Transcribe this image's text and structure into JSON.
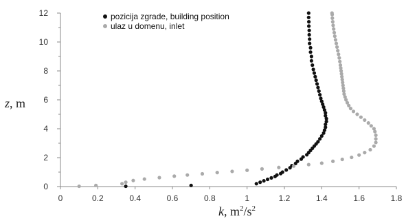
{
  "chart_data": {
    "type": "scatter",
    "x_axis": {
      "label_var": "k",
      "label_rest": ", m",
      "label_sup1": "2",
      "label_mid": "/s",
      "label_sup2": "2",
      "range": [
        0,
        1.8
      ],
      "ticks": [
        "0",
        "0.2",
        "0.4",
        "0.6",
        "0.8",
        "1",
        "1.2",
        "1.4",
        "1.6",
        "1.8"
      ],
      "tick_values": [
        0,
        0.2,
        0.4,
        0.6,
        0.8,
        1.0,
        1.2,
        1.4,
        1.6,
        1.8
      ]
    },
    "y_axis": {
      "label_var": "z",
      "label_rest": ", m",
      "range": [
        0,
        12
      ],
      "ticks": [
        "0",
        "2",
        "4",
        "6",
        "8",
        "10",
        "12"
      ],
      "tick_values": [
        0,
        2,
        4,
        6,
        8,
        10,
        12
      ]
    },
    "grid": false,
    "legend_position": "top-left-center",
    "series": [
      {
        "name": "pozicija zgrade, building position",
        "color": "#111111",
        "points": [
          [
            0.35,
            0.02
          ],
          [
            0.7,
            0.08
          ],
          [
            1.05,
            0.2
          ],
          [
            1.07,
            0.3
          ],
          [
            1.09,
            0.4
          ],
          [
            1.11,
            0.5
          ],
          [
            1.13,
            0.6
          ],
          [
            1.15,
            0.7
          ],
          [
            1.16,
            0.8
          ],
          [
            1.18,
            0.9
          ],
          [
            1.19,
            1.0
          ],
          [
            1.21,
            1.15
          ],
          [
            1.23,
            1.3
          ],
          [
            1.24,
            1.45
          ],
          [
            1.26,
            1.6
          ],
          [
            1.27,
            1.75
          ],
          [
            1.29,
            1.9
          ],
          [
            1.3,
            2.05
          ],
          [
            1.32,
            2.2
          ],
          [
            1.33,
            2.35
          ],
          [
            1.34,
            2.5
          ],
          [
            1.35,
            2.65
          ],
          [
            1.36,
            2.8
          ],
          [
            1.37,
            2.95
          ],
          [
            1.38,
            3.1
          ],
          [
            1.39,
            3.3
          ],
          [
            1.4,
            3.5
          ],
          [
            1.41,
            3.7
          ],
          [
            1.415,
            3.9
          ],
          [
            1.42,
            4.1
          ],
          [
            1.42,
            4.3
          ],
          [
            1.425,
            4.5
          ],
          [
            1.425,
            4.7
          ],
          [
            1.42,
            4.9
          ],
          [
            1.42,
            5.1
          ],
          [
            1.415,
            5.3
          ],
          [
            1.41,
            5.5
          ],
          [
            1.405,
            5.7
          ],
          [
            1.4,
            5.9
          ],
          [
            1.395,
            6.1
          ],
          [
            1.39,
            6.35
          ],
          [
            1.385,
            6.6
          ],
          [
            1.38,
            6.85
          ],
          [
            1.375,
            7.1
          ],
          [
            1.37,
            7.35
          ],
          [
            1.365,
            7.6
          ],
          [
            1.36,
            7.85
          ],
          [
            1.355,
            8.1
          ],
          [
            1.35,
            8.4
          ],
          [
            1.345,
            8.7
          ],
          [
            1.345,
            9.0
          ],
          [
            1.34,
            9.3
          ],
          [
            1.34,
            9.6
          ],
          [
            1.335,
            9.9
          ],
          [
            1.335,
            10.2
          ],
          [
            1.333,
            10.5
          ],
          [
            1.333,
            10.8
          ],
          [
            1.331,
            11.1
          ],
          [
            1.331,
            11.4
          ],
          [
            1.33,
            11.7
          ],
          [
            1.33,
            12.0
          ]
        ]
      },
      {
        "name": "ulaz u domenu, inlet",
        "color": "#aaaaaa",
        "points": [
          [
            0.1,
            0.02
          ],
          [
            0.19,
            0.08
          ],
          [
            0.33,
            0.2
          ],
          [
            0.35,
            0.3
          ],
          [
            0.39,
            0.42
          ],
          [
            0.45,
            0.52
          ],
          [
            0.53,
            0.62
          ],
          [
            0.61,
            0.72
          ],
          [
            0.68,
            0.8
          ],
          [
            0.76,
            0.88
          ],
          [
            0.84,
            0.97
          ],
          [
            0.92,
            1.05
          ],
          [
            1.0,
            1.13
          ],
          [
            1.08,
            1.22
          ],
          [
            1.17,
            1.32
          ],
          [
            1.25,
            1.42
          ],
          [
            1.33,
            1.52
          ],
          [
            1.4,
            1.62
          ],
          [
            1.46,
            1.75
          ],
          [
            1.51,
            1.88
          ],
          [
            1.56,
            2.02
          ],
          [
            1.6,
            2.18
          ],
          [
            1.63,
            2.35
          ],
          [
            1.66,
            2.55
          ],
          [
            1.68,
            2.8
          ],
          [
            1.69,
            3.05
          ],
          [
            1.69,
            3.3
          ],
          [
            1.69,
            3.55
          ],
          [
            1.685,
            3.8
          ],
          [
            1.68,
            4.0
          ],
          [
            1.665,
            4.2
          ],
          [
            1.65,
            4.4
          ],
          [
            1.63,
            4.6
          ],
          [
            1.61,
            4.8
          ],
          [
            1.59,
            5.0
          ],
          [
            1.57,
            5.2
          ],
          [
            1.555,
            5.4
          ],
          [
            1.545,
            5.6
          ],
          [
            1.537,
            5.8
          ],
          [
            1.53,
            6.0
          ],
          [
            1.525,
            6.2
          ],
          [
            1.52,
            6.4
          ],
          [
            1.518,
            6.6
          ],
          [
            1.516,
            6.8
          ],
          [
            1.514,
            7.0
          ],
          [
            1.512,
            7.2
          ],
          [
            1.51,
            7.4
          ],
          [
            1.508,
            7.6
          ],
          [
            1.506,
            7.8
          ],
          [
            1.504,
            8.0
          ],
          [
            1.502,
            8.2
          ],
          [
            1.5,
            8.4
          ],
          [
            1.497,
            8.65
          ],
          [
            1.494,
            8.9
          ],
          [
            1.49,
            9.15
          ],
          [
            1.486,
            9.4
          ],
          [
            1.482,
            9.65
          ],
          [
            1.478,
            9.9
          ],
          [
            1.474,
            10.15
          ],
          [
            1.47,
            10.4
          ],
          [
            1.467,
            10.65
          ],
          [
            1.464,
            10.9
          ],
          [
            1.461,
            11.15
          ],
          [
            1.459,
            11.4
          ],
          [
            1.457,
            11.65
          ],
          [
            1.456,
            11.9
          ],
          [
            1.455,
            12.0
          ]
        ]
      }
    ]
  }
}
